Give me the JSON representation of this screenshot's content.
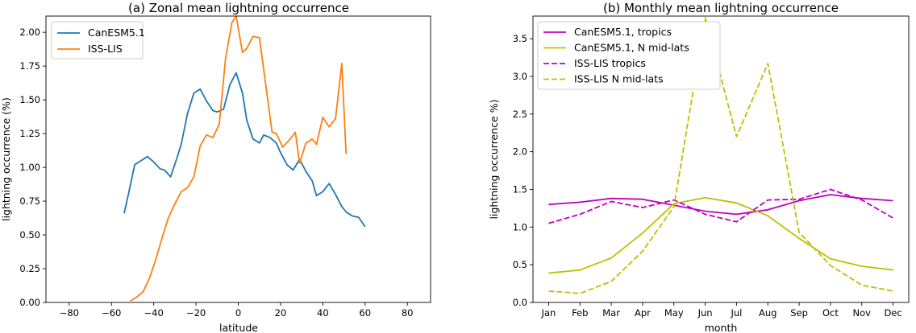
{
  "chart_data": [
    {
      "type": "line",
      "title": "(a) Zonal mean lightning occurrence",
      "xlabel": "latitude",
      "ylabel": "lightning occurrence (%)",
      "xlim": [
        -91,
        91
      ],
      "ylim": [
        0,
        2.12
      ],
      "xticks": [
        -80,
        -60,
        -40,
        -20,
        0,
        20,
        40,
        60,
        80
      ],
      "yticks": [
        0.0,
        0.25,
        0.5,
        0.75,
        1.0,
        1.25,
        1.5,
        1.75,
        2.0
      ],
      "ytick_labels": [
        "0.00",
        "0.25",
        "0.50",
        "0.75",
        "1.00",
        "1.25",
        "1.50",
        "1.75",
        "2.00"
      ],
      "grid": false,
      "legend": "upper-left",
      "series": [
        {
          "name": "CanESM5.1",
          "color": "#1f77b4",
          "style": "solid",
          "x": [
            -54,
            -52,
            -49,
            -46,
            -43,
            -40,
            -37,
            -35,
            -32,
            -29,
            -27,
            -24,
            -21,
            -18,
            -15,
            -12,
            -10,
            -7,
            -4,
            -1,
            2,
            4,
            7,
            10,
            12,
            15,
            18,
            20,
            23,
            26,
            29,
            32,
            35,
            37,
            40,
            43,
            46,
            49,
            51,
            54,
            57,
            60
          ],
          "y": [
            0.66,
            0.8,
            1.02,
            1.05,
            1.08,
            1.04,
            0.99,
            0.98,
            0.93,
            1.07,
            1.17,
            1.4,
            1.55,
            1.58,
            1.49,
            1.42,
            1.41,
            1.43,
            1.61,
            1.7,
            1.55,
            1.35,
            1.21,
            1.18,
            1.24,
            1.22,
            1.18,
            1.11,
            1.02,
            0.98,
            1.06,
            0.97,
            0.9,
            0.79,
            0.82,
            0.88,
            0.8,
            0.71,
            0.67,
            0.64,
            0.63,
            0.56
          ]
        },
        {
          "name": "ISS-LIS",
          "color": "#ff7f0e",
          "style": "solid",
          "x": [
            -51,
            -48,
            -45,
            -42,
            -39,
            -36,
            -33,
            -30,
            -27,
            -24,
            -21,
            -18,
            -15,
            -12,
            -9,
            -6,
            -3,
            -1,
            2,
            4,
            7,
            10,
            13,
            16,
            18,
            21,
            24,
            27,
            29,
            32,
            35,
            37,
            40,
            43,
            46,
            49,
            51
          ],
          "y": [
            0.01,
            0.04,
            0.08,
            0.18,
            0.32,
            0.48,
            0.63,
            0.73,
            0.82,
            0.85,
            0.93,
            1.16,
            1.24,
            1.22,
            1.32,
            1.81,
            2.07,
            2.12,
            1.85,
            1.88,
            1.97,
            1.96,
            1.61,
            1.26,
            1.25,
            1.15,
            1.2,
            1.26,
            1.03,
            1.18,
            1.21,
            1.17,
            1.37,
            1.3,
            1.36,
            1.77,
            1.1
          ]
        }
      ]
    },
    {
      "type": "line",
      "title": "(b) Monthly mean lightning occurrence",
      "xlabel": "month",
      "ylabel": "lightning occurrence %)",
      "categories": [
        "Jan",
        "Feb",
        "Mar",
        "Apr",
        "May",
        "Jun",
        "Jul",
        "Aug",
        "Sep",
        "Oct",
        "Nov",
        "Dec"
      ],
      "ylim": [
        0,
        3.8
      ],
      "yticks": [
        0.0,
        0.5,
        1.0,
        1.5,
        2.0,
        2.5,
        3.0,
        3.5
      ],
      "ytick_labels": [
        "0.0",
        "0.5",
        "1.0",
        "1.5",
        "2.0",
        "2.5",
        "3.0",
        "3.5"
      ],
      "grid": false,
      "legend": "upper-left",
      "series": [
        {
          "name": "CanESM5.1, tropics",
          "color": "#bf00bf",
          "style": "solid",
          "values": [
            1.3,
            1.33,
            1.38,
            1.37,
            1.29,
            1.21,
            1.17,
            1.23,
            1.35,
            1.43,
            1.38,
            1.35
          ]
        },
        {
          "name": "CanESM5.1, N mid-lats",
          "color": "#bfbf00",
          "style": "solid",
          "values": [
            0.39,
            0.43,
            0.59,
            0.92,
            1.31,
            1.39,
            1.32,
            1.15,
            0.85,
            0.58,
            0.48,
            0.43
          ]
        },
        {
          "name": "ISS-LIS tropics",
          "color": "#bf00bf",
          "style": "dashed",
          "values": [
            1.05,
            1.17,
            1.34,
            1.26,
            1.36,
            1.17,
            1.07,
            1.36,
            1.37,
            1.5,
            1.36,
            1.12
          ]
        },
        {
          "name": "ISS-LIS N mid-lats",
          "color": "#bfbf00",
          "style": "dashed",
          "values": [
            0.15,
            0.12,
            0.28,
            0.68,
            1.27,
            3.78,
            2.2,
            3.17,
            0.93,
            0.49,
            0.23,
            0.15
          ]
        }
      ]
    }
  ]
}
